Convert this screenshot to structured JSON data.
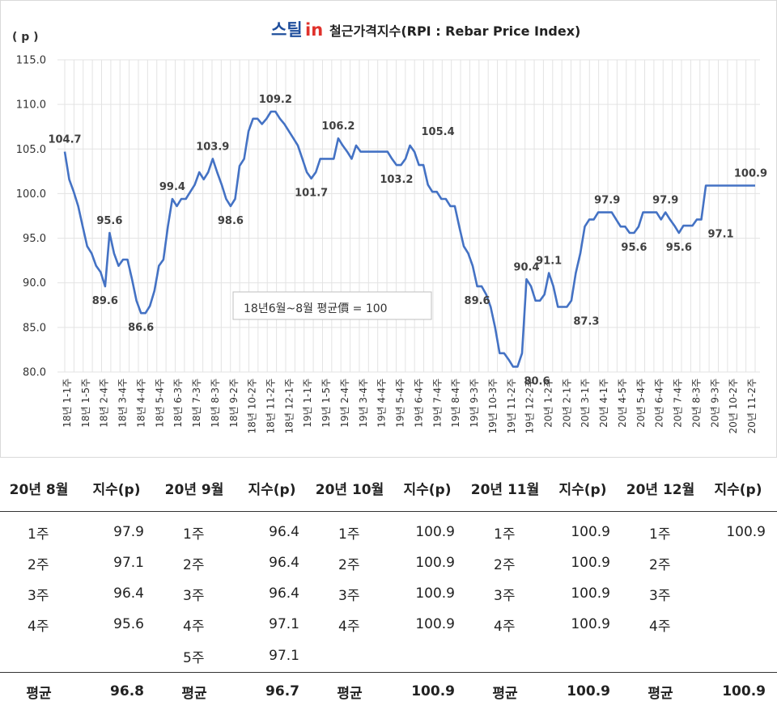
{
  "title": {
    "logo_main": "스틸",
    "logo_accent": "in",
    "text": "철근가격지수(RPI : Rebar Price Index)"
  },
  "colors": {
    "line": "#4472c4",
    "logo_blue": "#1f4e9c",
    "logo_red": "#e0312b",
    "grid": "#e3e3e3",
    "plot_bg": "#ffffff"
  },
  "chart_data": {
    "type": "line",
    "ylabel": "( p )",
    "ylim": [
      80,
      115
    ],
    "yticks": [
      "80.0",
      "85.0",
      "90.0",
      "95.0",
      "100.0",
      "105.0",
      "110.0",
      "115.0"
    ],
    "grid": true,
    "note": "18년6월~8월 평균價 = 100",
    "x_tick_labels": [
      "18년 1-1주",
      "18년 1-5주",
      "18년 2-4주",
      "18년 3-4주",
      "18년 4-4주",
      "18년 5-4주",
      "18년 6-3주",
      "18년 7-3주",
      "18년 8-3주",
      "18년 9-2주",
      "18년 10-2주",
      "18년 11-2주",
      "18년 12-1주",
      "19년 1-1주",
      "19년 1-5주",
      "19년 2-4주",
      "19년 3-4주",
      "19년 4-4주",
      "19년 5-4주",
      "19년 6-4주",
      "19년 7-4주",
      "19년 8-4주",
      "19년 9-3주",
      "19년 10-3주",
      "19년 11-2주",
      "19년 12-2주",
      "20년 1-2주",
      "20년 2-1주",
      "20년 3-1주",
      "20년 4-1주",
      "20년 4-5주",
      "20년 5-4주",
      "20년 6-4주",
      "20년 7-4주",
      "20년 8-3주",
      "20년 9-3주",
      "20년 10-2주",
      "20년 11-2주"
    ],
    "series": [
      {
        "values": [
          104.7,
          101.6,
          100.2,
          98.6,
          96.3,
          94.1,
          93.3,
          91.9,
          91.2,
          89.6,
          95.6,
          93.3,
          91.9,
          92.6,
          92.6,
          90.4,
          88.0,
          86.6,
          86.6,
          87.4,
          89.1,
          91.9,
          92.6,
          96.3,
          99.4,
          98.6,
          99.4,
          99.4,
          100.2,
          101.0,
          102.4,
          101.6,
          102.4,
          103.9,
          102.4,
          101.0,
          99.4,
          98.6,
          99.4,
          103.1,
          103.9,
          107.0,
          108.4,
          108.4,
          107.8,
          108.4,
          109.2,
          109.2,
          108.4,
          107.8,
          107.0,
          106.2,
          105.4,
          103.9,
          102.4,
          101.7,
          102.4,
          103.9,
          103.9,
          103.9,
          103.9,
          106.2,
          105.4,
          104.7,
          103.9,
          105.4,
          104.7,
          104.7,
          104.7,
          104.7,
          104.7,
          104.7,
          104.7,
          103.9,
          103.2,
          103.2,
          103.9,
          105.4,
          104.7,
          103.2,
          103.2,
          101.0,
          100.2,
          100.2,
          99.4,
          99.4,
          98.6,
          98.6,
          96.3,
          94.1,
          93.3,
          91.9,
          89.6,
          89.6,
          88.7,
          87.3,
          85.0,
          82.1,
          82.1,
          81.4,
          80.6,
          80.6,
          82.1,
          90.4,
          89.6,
          88.0,
          88.0,
          88.7,
          91.1,
          89.6,
          87.3,
          87.3,
          87.3,
          88.0,
          91.1,
          93.3,
          96.3,
          97.1,
          97.1,
          97.9,
          97.9,
          97.9,
          97.9,
          97.1,
          96.3,
          96.3,
          95.6,
          95.6,
          96.3,
          97.9,
          97.9,
          97.9,
          97.9,
          97.1,
          97.9,
          97.1,
          96.4,
          95.6,
          96.4,
          96.4,
          96.4,
          97.1,
          97.1,
          100.9,
          100.9,
          100.9,
          100.9,
          100.9,
          100.9,
          100.9,
          100.9,
          100.9,
          100.9,
          100.9,
          100.9
        ]
      }
    ],
    "annotations": [
      {
        "i": 0,
        "text": "104.7",
        "pos": "above"
      },
      {
        "i": 9,
        "text": "89.6",
        "pos": "below"
      },
      {
        "i": 10,
        "text": "95.6",
        "pos": "above"
      },
      {
        "i": 17,
        "text": "86.6",
        "pos": "below"
      },
      {
        "i": 24,
        "text": "99.4",
        "pos": "above"
      },
      {
        "i": 33,
        "text": "103.9",
        "pos": "above"
      },
      {
        "i": 37,
        "text": "98.6",
        "pos": "below"
      },
      {
        "i": 47,
        "text": "109.2",
        "pos": "above"
      },
      {
        "i": 55,
        "text": "101.7",
        "pos": "below"
      },
      {
        "i": 61,
        "text": "106.2",
        "pos": "above"
      },
      {
        "i": 74,
        "text": "103.2",
        "pos": "below"
      },
      {
        "i": 77,
        "text": "105.4",
        "pos": "above-right"
      },
      {
        "i": 92,
        "text": "89.6",
        "pos": "below"
      },
      {
        "i": 101,
        "text": "80.6",
        "pos": "below-right"
      },
      {
        "i": 103,
        "text": "90.4",
        "pos": "above"
      },
      {
        "i": 108,
        "text": "91.1",
        "pos": "above"
      },
      {
        "i": 112,
        "text": "87.3",
        "pos": "below-right"
      },
      {
        "i": 121,
        "text": "97.9",
        "pos": "above"
      },
      {
        "i": 127,
        "text": "95.6",
        "pos": "below"
      },
      {
        "i": 134,
        "text": "97.9",
        "pos": "above"
      },
      {
        "i": 137,
        "text": "95.6",
        "pos": "below"
      },
      {
        "i": 142,
        "text": "97.1",
        "pos": "below-right"
      },
      {
        "i": 153,
        "text": "100.9",
        "pos": "above"
      }
    ]
  },
  "table": {
    "headers": [
      "20년 8월",
      "지수(p)",
      "20년 9월",
      "지수(p)",
      "20년 10월",
      "지수(p)",
      "20년 11월",
      "지수(p)",
      "20년 12월",
      "지수(p)"
    ],
    "rows": [
      [
        "1주",
        "97.9",
        "1주",
        "96.4",
        "1주",
        "100.9",
        "1주",
        "100.9",
        "1주",
        "100.9"
      ],
      [
        "2주",
        "97.1",
        "2주",
        "96.4",
        "2주",
        "100.9",
        "2주",
        "100.9",
        "2주",
        ""
      ],
      [
        "3주",
        "96.4",
        "3주",
        "96.4",
        "3주",
        "100.9",
        "3주",
        "100.9",
        "3주",
        ""
      ],
      [
        "4주",
        "95.6",
        "4주",
        "97.1",
        "4주",
        "100.9",
        "4주",
        "100.9",
        "4주",
        ""
      ],
      [
        "",
        "",
        "5주",
        "97.1",
        "",
        "",
        "",
        "",
        "",
        ""
      ]
    ],
    "averages": [
      "평균",
      "96.8",
      "평균",
      "96.7",
      "평균",
      "100.9",
      "평균",
      "100.9",
      "평균",
      "100.9"
    ]
  }
}
